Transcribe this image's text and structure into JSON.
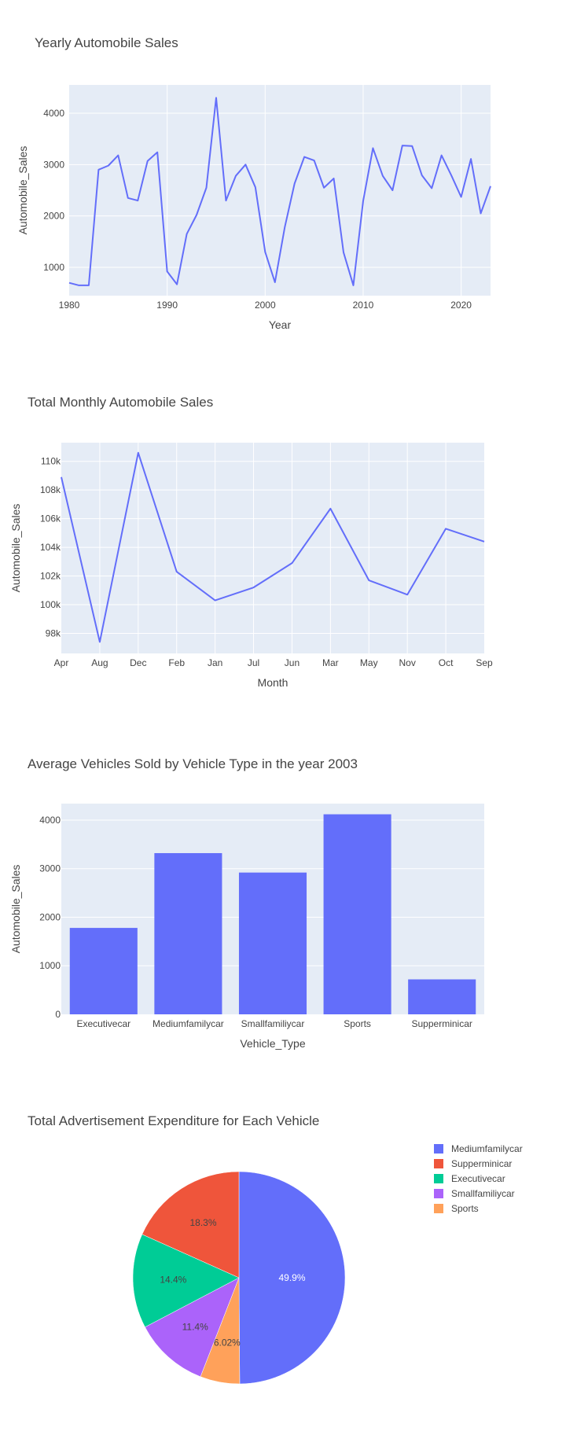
{
  "chart_data": [
    {
      "type": "line",
      "title": "Yearly Automobile Sales",
      "xlabel": "Year",
      "ylabel": "Automobile_Sales",
      "xlim": [
        1980,
        2023
      ],
      "ylim": [
        450,
        4550
      ],
      "xticks": [
        1980,
        1990,
        2000,
        2010,
        2020
      ],
      "yticks": [
        1000,
        2000,
        3000,
        4000
      ],
      "series_color": "#636efa",
      "x": [
        1980,
        1981,
        1982,
        1983,
        1984,
        1985,
        1986,
        1987,
        1988,
        1989,
        1990,
        1991,
        1992,
        1993,
        1994,
        1995,
        1996,
        1997,
        1998,
        1999,
        2000,
        2001,
        2002,
        2003,
        2004,
        2005,
        2006,
        2007,
        2008,
        2009,
        2010,
        2011,
        2012,
        2013,
        2014,
        2015,
        2016,
        2017,
        2018,
        2019,
        2020,
        2021,
        2022,
        2023
      ],
      "values": [
        700,
        650,
        650,
        2900,
        2980,
        3180,
        2350,
        2300,
        3070,
        3240,
        920,
        670,
        1650,
        2020,
        2550,
        4300,
        2300,
        2780,
        3000,
        2560,
        1300,
        710,
        1780,
        2630,
        3150,
        3080,
        2550,
        2730,
        1290,
        650,
        2290,
        3320,
        2780,
        2500,
        3370,
        3360,
        2790,
        2540,
        3180,
        2790,
        2370,
        3110,
        2050,
        2580
      ]
    },
    {
      "type": "line",
      "title": "Total Monthly Automobile Sales",
      "xlabel": "Month",
      "ylabel": "Automobile_Sales",
      "categories": [
        "Apr",
        "Aug",
        "Dec",
        "Feb",
        "Jan",
        "Jul",
        "Jun",
        "Mar",
        "May",
        "Nov",
        "Oct",
        "Sep"
      ],
      "ylim": [
        96600,
        111300
      ],
      "yticks": [
        98000,
        100000,
        102000,
        104000,
        106000,
        108000,
        110000
      ],
      "ytick_labels": [
        "98k",
        "100k",
        "102k",
        "104k",
        "106k",
        "108k",
        "110k"
      ],
      "series_color": "#636efa",
      "values": [
        108900,
        97400,
        110600,
        102300,
        100300,
        101200,
        102900,
        106700,
        101700,
        100700,
        105300,
        104400
      ]
    },
    {
      "type": "bar",
      "title": "Average Vehicles Sold by Vehicle Type in the year 2003",
      "xlabel": "Vehicle_Type",
      "ylabel": "Automobile_Sales",
      "categories": [
        "Executivecar",
        "Mediumfamilycar",
        "Smallfamiliycar",
        "Sports",
        "Supperminicar"
      ],
      "values": [
        1780,
        3320,
        2920,
        4120,
        720
      ],
      "ylim": [
        0,
        4340
      ],
      "yticks": [
        0,
        1000,
        2000,
        3000,
        4000
      ],
      "bar_color": "#636efa"
    },
    {
      "type": "pie",
      "title": "Total Advertisement Expenditure for Each Vehicle",
      "legend_position": "right",
      "slices": [
        {
          "name": "Mediumfamilycar",
          "value": 49.9,
          "label": "49.9%",
          "color": "#636efa"
        },
        {
          "name": "Supperminicar",
          "value": 18.3,
          "label": "18.3%",
          "color": "#ef553b"
        },
        {
          "name": "Executivecar",
          "value": 14.4,
          "label": "14.4%",
          "color": "#00cc96"
        },
        {
          "name": "Smallfamiliycar",
          "value": 11.4,
          "label": "11.4%",
          "color": "#ab63fa"
        },
        {
          "name": "Sports",
          "value": 6.02,
          "label": "6.02%",
          "color": "#ffa15a"
        }
      ],
      "draw_order": [
        0,
        4,
        3,
        2,
        1
      ]
    }
  ]
}
